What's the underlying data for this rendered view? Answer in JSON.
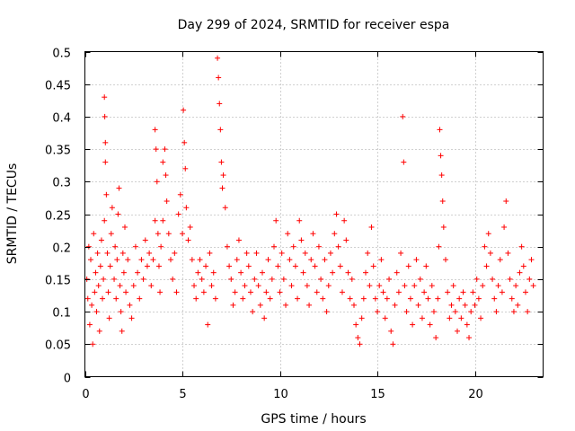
{
  "chart_data": {
    "type": "scatter",
    "title": "Day 299 of 2024, SRMTID for receiver espa",
    "xlabel": "GPS time / hours",
    "ylabel": "SRMTID / TECUs",
    "xlim": [
      0,
      23.5
    ],
    "ylim": [
      0,
      0.5
    ],
    "xticks": [
      0,
      5,
      10,
      15,
      20
    ],
    "xtick_labels": [
      "0",
      "5",
      "10",
      "15",
      "20"
    ],
    "yticks": [
      0,
      0.05,
      0.1,
      0.15,
      0.2,
      0.25,
      0.3,
      0.35,
      0.4,
      0.45,
      0.5
    ],
    "ytick_labels": [
      "0",
      "0.05",
      "0.1",
      "0.15",
      "0.2",
      "0.25",
      "0.3",
      "0.35",
      "0.4",
      "0.45",
      "0.5"
    ],
    "grid": true,
    "marker": "+",
    "color": "#ff0000",
    "series": [
      {
        "name": "SRMTID",
        "points": [
          [
            0.1,
            0.15
          ],
          [
            0.15,
            0.12
          ],
          [
            0.2,
            0.2
          ],
          [
            0.25,
            0.08
          ],
          [
            0.3,
            0.18
          ],
          [
            0.35,
            0.11
          ],
          [
            0.4,
            0.05
          ],
          [
            0.45,
            0.22
          ],
          [
            0.5,
            0.13
          ],
          [
            0.55,
            0.16
          ],
          [
            0.6,
            0.1
          ],
          [
            0.65,
            0.19
          ],
          [
            0.7,
            0.14
          ],
          [
            0.75,
            0.07
          ],
          [
            0.8,
            0.17
          ],
          [
            0.85,
            0.21
          ],
          [
            0.9,
            0.12
          ],
          [
            0.95,
            0.15
          ],
          [
            1.0,
            0.24
          ],
          [
            1.0,
            0.43
          ],
          [
            1.02,
            0.4
          ],
          [
            1.05,
            0.36
          ],
          [
            1.05,
            0.33
          ],
          [
            1.1,
            0.28
          ],
          [
            1.15,
            0.19
          ],
          [
            1.2,
            0.13
          ],
          [
            1.25,
            0.09
          ],
          [
            1.3,
            0.17
          ],
          [
            1.35,
            0.22
          ],
          [
            1.4,
            0.26
          ],
          [
            1.5,
            0.15
          ],
          [
            1.55,
            0.2
          ],
          [
            1.6,
            0.12
          ],
          [
            1.65,
            0.18
          ],
          [
            1.7,
            0.25
          ],
          [
            1.75,
            0.29
          ],
          [
            1.8,
            0.14
          ],
          [
            1.85,
            0.1
          ],
          [
            1.9,
            0.07
          ],
          [
            1.95,
            0.19
          ],
          [
            2.0,
            0.16
          ],
          [
            2.05,
            0.23
          ],
          [
            2.1,
            0.13
          ],
          [
            2.2,
            0.18
          ],
          [
            2.3,
            0.11
          ],
          [
            2.4,
            0.09
          ],
          [
            2.5,
            0.14
          ],
          [
            2.6,
            0.2
          ],
          [
            2.7,
            0.16
          ],
          [
            2.8,
            0.12
          ],
          [
            2.9,
            0.18
          ],
          [
            3.0,
            0.15
          ],
          [
            3.1,
            0.21
          ],
          [
            3.2,
            0.17
          ],
          [
            3.3,
            0.19
          ],
          [
            3.4,
            0.14
          ],
          [
            3.5,
            0.18
          ],
          [
            3.6,
            0.24
          ],
          [
            3.6,
            0.38
          ],
          [
            3.65,
            0.35
          ],
          [
            3.7,
            0.3
          ],
          [
            3.75,
            0.22
          ],
          [
            3.8,
            0.17
          ],
          [
            3.85,
            0.13
          ],
          [
            3.9,
            0.2
          ],
          [
            4.0,
            0.24
          ],
          [
            4.0,
            0.33
          ],
          [
            4.1,
            0.35
          ],
          [
            4.15,
            0.31
          ],
          [
            4.2,
            0.27
          ],
          [
            4.3,
            0.22
          ],
          [
            4.4,
            0.18
          ],
          [
            4.5,
            0.15
          ],
          [
            4.6,
            0.19
          ],
          [
            4.7,
            0.13
          ],
          [
            4.8,
            0.25
          ],
          [
            4.9,
            0.28
          ],
          [
            5.0,
            0.22
          ],
          [
            5.05,
            0.41
          ],
          [
            5.1,
            0.36
          ],
          [
            5.15,
            0.32
          ],
          [
            5.2,
            0.26
          ],
          [
            5.3,
            0.21
          ],
          [
            5.4,
            0.23
          ],
          [
            5.5,
            0.18
          ],
          [
            5.6,
            0.14
          ],
          [
            5.7,
            0.12
          ],
          [
            5.8,
            0.16
          ],
          [
            5.9,
            0.18
          ],
          [
            6.0,
            0.15
          ],
          [
            6.1,
            0.13
          ],
          [
            6.2,
            0.17
          ],
          [
            6.3,
            0.08
          ],
          [
            6.4,
            0.19
          ],
          [
            6.5,
            0.14
          ],
          [
            6.6,
            0.16
          ],
          [
            6.7,
            0.12
          ],
          [
            6.8,
            0.49
          ],
          [
            6.85,
            0.46
          ],
          [
            6.9,
            0.42
          ],
          [
            6.95,
            0.38
          ],
          [
            7.0,
            0.33
          ],
          [
            7.05,
            0.29
          ],
          [
            7.1,
            0.31
          ],
          [
            7.2,
            0.26
          ],
          [
            7.3,
            0.2
          ],
          [
            7.4,
            0.17
          ],
          [
            7.5,
            0.15
          ],
          [
            7.6,
            0.11
          ],
          [
            7.7,
            0.13
          ],
          [
            7.8,
            0.18
          ],
          [
            7.9,
            0.21
          ],
          [
            8.0,
            0.16
          ],
          [
            8.1,
            0.12
          ],
          [
            8.2,
            0.14
          ],
          [
            8.3,
            0.19
          ],
          [
            8.4,
            0.17
          ],
          [
            8.5,
            0.13
          ],
          [
            8.6,
            0.1
          ],
          [
            8.7,
            0.15
          ],
          [
            8.8,
            0.19
          ],
          [
            8.9,
            0.14
          ],
          [
            9.0,
            0.11
          ],
          [
            9.1,
            0.16
          ],
          [
            9.2,
            0.09
          ],
          [
            9.3,
            0.13
          ],
          [
            9.4,
            0.18
          ],
          [
            9.5,
            0.12
          ],
          [
            9.6,
            0.15
          ],
          [
            9.7,
            0.2
          ],
          [
            9.8,
            0.24
          ],
          [
            9.9,
            0.17
          ],
          [
            10.0,
            0.13
          ],
          [
            10.1,
            0.19
          ],
          [
            10.2,
            0.15
          ],
          [
            10.3,
            0.11
          ],
          [
            10.4,
            0.22
          ],
          [
            10.5,
            0.18
          ],
          [
            10.6,
            0.14
          ],
          [
            10.7,
            0.2
          ],
          [
            10.8,
            0.17
          ],
          [
            10.9,
            0.12
          ],
          [
            11.0,
            0.24
          ],
          [
            11.1,
            0.21
          ],
          [
            11.2,
            0.16
          ],
          [
            11.3,
            0.19
          ],
          [
            11.4,
            0.14
          ],
          [
            11.5,
            0.11
          ],
          [
            11.6,
            0.18
          ],
          [
            11.7,
            0.22
          ],
          [
            11.8,
            0.17
          ],
          [
            11.9,
            0.13
          ],
          [
            12.0,
            0.2
          ],
          [
            12.1,
            0.15
          ],
          [
            12.2,
            0.12
          ],
          [
            12.3,
            0.18
          ],
          [
            12.4,
            0.1
          ],
          [
            12.5,
            0.14
          ],
          [
            12.6,
            0.19
          ],
          [
            12.7,
            0.16
          ],
          [
            12.8,
            0.22
          ],
          [
            12.9,
            0.25
          ],
          [
            13.0,
            0.2
          ],
          [
            13.1,
            0.17
          ],
          [
            13.2,
            0.13
          ],
          [
            13.3,
            0.24
          ],
          [
            13.4,
            0.21
          ],
          [
            13.5,
            0.16
          ],
          [
            13.6,
            0.12
          ],
          [
            13.7,
            0.15
          ],
          [
            13.8,
            0.11
          ],
          [
            13.9,
            0.08
          ],
          [
            14.0,
            0.06
          ],
          [
            14.1,
            0.05
          ],
          [
            14.2,
            0.09
          ],
          [
            14.3,
            0.12
          ],
          [
            14.4,
            0.16
          ],
          [
            14.5,
            0.19
          ],
          [
            14.6,
            0.14
          ],
          [
            14.7,
            0.23
          ],
          [
            14.8,
            0.17
          ],
          [
            14.9,
            0.12
          ],
          [
            15.0,
            0.1
          ],
          [
            15.1,
            0.14
          ],
          [
            15.2,
            0.18
          ],
          [
            15.3,
            0.13
          ],
          [
            15.4,
            0.09
          ],
          [
            15.5,
            0.12
          ],
          [
            15.6,
            0.15
          ],
          [
            15.7,
            0.07
          ],
          [
            15.8,
            0.05
          ],
          [
            15.9,
            0.11
          ],
          [
            16.0,
            0.16
          ],
          [
            16.1,
            0.13
          ],
          [
            16.2,
            0.19
          ],
          [
            16.3,
            0.4
          ],
          [
            16.35,
            0.33
          ],
          [
            16.4,
            0.14
          ],
          [
            16.5,
            0.1
          ],
          [
            16.6,
            0.17
          ],
          [
            16.7,
            0.12
          ],
          [
            16.8,
            0.08
          ],
          [
            16.9,
            0.14
          ],
          [
            17.0,
            0.18
          ],
          [
            17.1,
            0.11
          ],
          [
            17.2,
            0.15
          ],
          [
            17.3,
            0.09
          ],
          [
            17.4,
            0.13
          ],
          [
            17.5,
            0.17
          ],
          [
            17.6,
            0.12
          ],
          [
            17.7,
            0.08
          ],
          [
            17.8,
            0.14
          ],
          [
            17.9,
            0.1
          ],
          [
            18.0,
            0.06
          ],
          [
            18.1,
            0.12
          ],
          [
            18.15,
            0.2
          ],
          [
            18.2,
            0.38
          ],
          [
            18.25,
            0.34
          ],
          [
            18.3,
            0.31
          ],
          [
            18.35,
            0.27
          ],
          [
            18.4,
            0.23
          ],
          [
            18.5,
            0.18
          ],
          [
            18.6,
            0.13
          ],
          [
            18.7,
            0.09
          ],
          [
            18.8,
            0.11
          ],
          [
            18.9,
            0.14
          ],
          [
            19.0,
            0.1
          ],
          [
            19.1,
            0.07
          ],
          [
            19.2,
            0.12
          ],
          [
            19.3,
            0.09
          ],
          [
            19.4,
            0.13
          ],
          [
            19.5,
            0.11
          ],
          [
            19.6,
            0.08
          ],
          [
            19.7,
            0.06
          ],
          [
            19.8,
            0.1
          ],
          [
            19.9,
            0.13
          ],
          [
            20.0,
            0.11
          ],
          [
            20.1,
            0.15
          ],
          [
            20.2,
            0.12
          ],
          [
            20.3,
            0.09
          ],
          [
            20.4,
            0.14
          ],
          [
            20.5,
            0.2
          ],
          [
            20.6,
            0.17
          ],
          [
            20.7,
            0.22
          ],
          [
            20.8,
            0.19
          ],
          [
            20.9,
            0.15
          ],
          [
            21.0,
            0.12
          ],
          [
            21.1,
            0.1
          ],
          [
            21.2,
            0.14
          ],
          [
            21.3,
            0.18
          ],
          [
            21.4,
            0.13
          ],
          [
            21.5,
            0.23
          ],
          [
            21.6,
            0.27
          ],
          [
            21.7,
            0.19
          ],
          [
            21.8,
            0.15
          ],
          [
            21.9,
            0.12
          ],
          [
            22.0,
            0.1
          ],
          [
            22.1,
            0.14
          ],
          [
            22.2,
            0.11
          ],
          [
            22.3,
            0.16
          ],
          [
            22.4,
            0.2
          ],
          [
            22.5,
            0.17
          ],
          [
            22.6,
            0.13
          ],
          [
            22.7,
            0.1
          ],
          [
            22.8,
            0.15
          ],
          [
            22.9,
            0.18
          ],
          [
            23.0,
            0.14
          ]
        ]
      }
    ]
  }
}
